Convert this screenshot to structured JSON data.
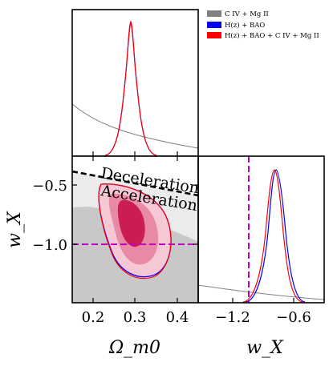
{
  "chart_data": {
    "type": "corner-plot",
    "parameters": {
      "x": {
        "label": "Ω_m0",
        "ticks": [
          "0.2",
          "0.3",
          "0.4"
        ],
        "tick_values": [
          0.2,
          0.3,
          0.4
        ],
        "range": [
          0.15,
          0.45
        ]
      },
      "y": {
        "label": "w_X",
        "ticks": [
          "−0.5",
          "−1.0"
        ],
        "tick_values": [
          -0.5,
          -1.0
        ],
        "range": [
          -1.5,
          -0.25
        ]
      },
      "w_marginal": {
        "label": "w_X",
        "ticks": [
          "−1.2",
          "−0.6"
        ],
        "tick_values": [
          -1.2,
          -0.6
        ],
        "range": [
          -1.5,
          -0.4
        ]
      }
    },
    "legend": {
      "position": "top-right",
      "entries": [
        {
          "label": "C IV + Mg II",
          "color": "#808080"
        },
        {
          "label": "H(z) + BAO",
          "color": "#0000ff"
        },
        {
          "label": "H(z) + BAO + C IV + Mg II",
          "color": "#ff0000"
        }
      ]
    },
    "annotations": {
      "upper": "Deceleration",
      "lower": "Acceleration"
    },
    "reference_lines": {
      "w_X": -1.0,
      "color": "#c000c0"
    },
    "series": [
      {
        "name": "C IV + Mg II",
        "type": "broad posterior",
        "color": "#808080"
      },
      {
        "name": "H(z) + BAO",
        "omega_m0_peak": 0.293,
        "w_X_peak": -0.75,
        "color": "#0000ff"
      },
      {
        "name": "H(z) + BAO + C IV + Mg II",
        "omega_m0_peak": 0.293,
        "w_X_peak": -0.76,
        "color": "#ff0000"
      }
    ]
  },
  "colors": {
    "contour_outer": "#f6c8d6",
    "contour_middle": "#e88aa4",
    "contour_inner": "#cc1d52",
    "grey_light": "#ebebeb",
    "grey_dark": "#c8c8c8",
    "magenta": "#c000c0"
  }
}
